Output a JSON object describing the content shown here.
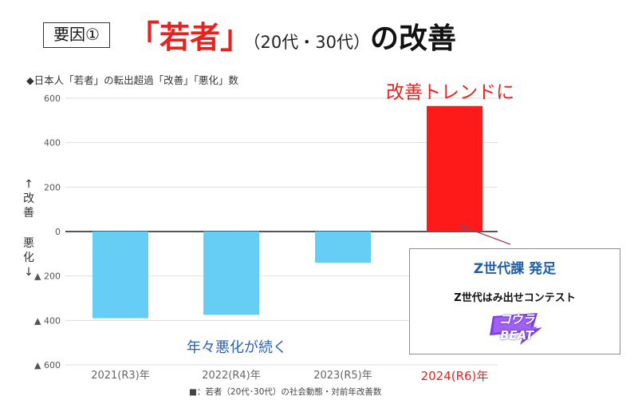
{
  "header": {
    "tag": "要因①",
    "title_bracket_open": "「",
    "title_emphasis": "若者",
    "title_bracket_close": "」",
    "title_sub": "（20代・30代）",
    "title_tail": "の改善"
  },
  "subtitle": "◆日本人「若者」の転出超過「改善」「悪化」数",
  "axis_side": {
    "up_arrow": "↑",
    "up_1": "改",
    "up_2": "善",
    "down_1": "悪",
    "down_2": "化",
    "down_arrow": "↓"
  },
  "annotations": {
    "top_right": "改善トレンドに",
    "bottom": "年々悪化が続く"
  },
  "callout": {
    "line1": "Z世代課 発足",
    "line2": "Z世代はみ出せコンテスト",
    "logo_line1": "コウラ",
    "logo_line2": "BEAT"
  },
  "footnote": "■：若者（20代･30代）の社会動態・対前年改善数",
  "colors": {
    "negative_bar": "#66cdf4",
    "positive_bar": "#ff1a1a",
    "accent_red": "#e8231f",
    "accent_blue": "#2a61b8"
  },
  "chart_data": {
    "type": "bar",
    "categories": [
      "2021(R3)年",
      "2022(R4)年",
      "2023(R5)年",
      "2024(R6)年"
    ],
    "values": [
      -390,
      -375,
      -140,
      565
    ],
    "ylim": [
      -600,
      600
    ],
    "yticks": [
      600,
      400,
      200,
      0,
      -200,
      -400,
      -600
    ],
    "ytick_labels": [
      "600",
      "400",
      "200",
      "0",
      "▲ 200",
      "▲ 400",
      "▲ 600"
    ],
    "grid": true,
    "highlight_index": 3
  }
}
